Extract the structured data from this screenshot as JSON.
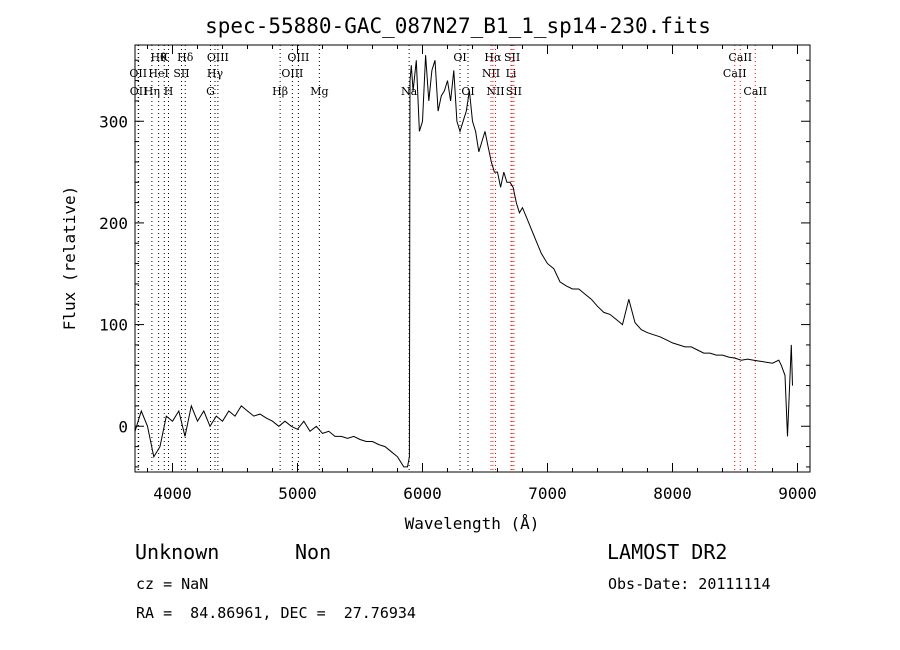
{
  "chart_data": {
    "type": "line",
    "title": "spec-55880-GAC_087N27_B1_1_sp14-230.fits",
    "xlabel": "Wavelength (Å)",
    "ylabel": "Flux (relative)",
    "xlim": [
      3700,
      9100
    ],
    "ylim": [
      -45,
      375
    ],
    "xticks": [
      4000,
      5000,
      6000,
      7000,
      8000,
      9000
    ],
    "yticks": [
      0,
      100,
      200,
      300
    ],
    "grid": false,
    "series": [
      {
        "x": [
          3700,
          3750,
          3800,
          3850,
          3900,
          3950,
          4000,
          4050,
          4100,
          4150,
          4200,
          4250,
          4300,
          4350,
          4400,
          4450,
          4500,
          4550,
          4600,
          4650,
          4700,
          4750,
          4800,
          4850,
          4900,
          4950,
          5000,
          5050,
          5100,
          5150,
          5200,
          5250,
          5300,
          5350,
          5400,
          5450,
          5500,
          5550,
          5600,
          5650,
          5700,
          5750,
          5800,
          5850,
          5880,
          5895,
          5900,
          5910,
          5925,
          5950,
          5975,
          6000,
          6025,
          6050,
          6075,
          6100,
          6125,
          6150,
          6175,
          6200,
          6225,
          6250,
          6275,
          6300,
          6325,
          6350,
          6375,
          6400,
          6425,
          6450,
          6475,
          6500,
          6525,
          6550,
          6575,
          6600,
          6625,
          6650,
          6675,
          6700,
          6725,
          6750,
          6775,
          6800,
          6850,
          6900,
          6950,
          7000,
          7050,
          7100,
          7150,
          7200,
          7250,
          7300,
          7350,
          7400,
          7450,
          7500,
          7550,
          7600,
          7650,
          7700,
          7750,
          7800,
          7850,
          7900,
          7950,
          8000,
          8050,
          8100,
          8150,
          8200,
          8250,
          8300,
          8350,
          8400,
          8450,
          8500,
          8550,
          8600,
          8650,
          8700,
          8750,
          8800,
          8850,
          8870,
          8900,
          8920,
          8950,
          8960
        ],
        "y": [
          -5,
          15,
          0,
          -30,
          -20,
          10,
          5,
          15,
          -10,
          20,
          5,
          15,
          0,
          10,
          5,
          15,
          10,
          20,
          15,
          10,
          12,
          8,
          5,
          0,
          5,
          0,
          -3,
          5,
          -5,
          0,
          -7,
          -5,
          -10,
          -10,
          -12,
          -10,
          -13,
          -15,
          -15,
          -18,
          -20,
          -25,
          -30,
          -40,
          -40,
          -30,
          340,
          355,
          330,
          360,
          290,
          300,
          365,
          320,
          350,
          360,
          310,
          325,
          330,
          340,
          320,
          350,
          300,
          290,
          300,
          310,
          330,
          300,
          290,
          270,
          280,
          290,
          275,
          260,
          250,
          250,
          235,
          250,
          240,
          240,
          235,
          220,
          210,
          215,
          200,
          185,
          170,
          160,
          155,
          142,
          138,
          135,
          135,
          130,
          125,
          118,
          112,
          110,
          105,
          100,
          125,
          102,
          95,
          92,
          90,
          88,
          85,
          82,
          80,
          78,
          78,
          75,
          72,
          72,
          70,
          70,
          68,
          67,
          65,
          66,
          65,
          64,
          63,
          62,
          65,
          60,
          50,
          -10,
          80,
          40
        ]
      }
    ],
    "annotations": {
      "row1": [
        {
          "x": 3889,
          "label": "Hθ"
        },
        {
          "x": 3934,
          "label": "K"
        },
        {
          "x": 4102,
          "label": "Hδ"
        },
        {
          "x": 4363,
          "label": "OIII"
        },
        {
          "x": 5007,
          "label": "OIII"
        },
        {
          "x": 6300,
          "label": "OI"
        },
        {
          "x": 6563,
          "label": "Hα"
        },
        {
          "x": 6717,
          "label": "SII"
        },
        {
          "x": 8542,
          "label": "CaII"
        }
      ],
      "row2": [
        {
          "x": 3726,
          "label": "OII"
        },
        {
          "x": 3889,
          "label": "HeI"
        },
        {
          "x": 4072,
          "label": "SII"
        },
        {
          "x": 4340,
          "label": "Hγ"
        },
        {
          "x": 4959,
          "label": "OIII"
        },
        {
          "x": 6548,
          "label": "NII"
        },
        {
          "x": 6708,
          "label": "Li"
        },
        {
          "x": 8498,
          "label": "CaII"
        }
      ],
      "row3": [
        {
          "x": 3729,
          "label": "OII"
        },
        {
          "x": 3835,
          "label": "Hη"
        },
        {
          "x": 3968,
          "label": "H"
        },
        {
          "x": 4304,
          "label": "G"
        },
        {
          "x": 4861,
          "label": "Hβ"
        },
        {
          "x": 5175,
          "label": "Mg"
        },
        {
          "x": 5893,
          "label": "Na"
        },
        {
          "x": 6364,
          "label": "OI"
        },
        {
          "x": 6584,
          "label": "NII"
        },
        {
          "x": 6731,
          "label": "SII"
        },
        {
          "x": 8662,
          "label": "CaII"
        }
      ]
    },
    "lines_black": [
      3726,
      3729,
      3835,
      3889,
      3934,
      3968,
      4072,
      4102,
      4304,
      4340,
      4363,
      4861,
      4959,
      5007,
      5175,
      5893,
      6300,
      6364
    ],
    "lines_red": [
      6548,
      6563,
      6584,
      6708,
      6717,
      6731,
      8498,
      8542,
      8662
    ]
  },
  "info": {
    "class": "Unknown",
    "subclass": "Non",
    "survey": "LAMOST DR2",
    "redshift": "cz = NaN",
    "obs_date": "Obs-Date: 20111114",
    "coords": "RA =  84.86961, DEC =  27.76934"
  },
  "colors": {
    "spectrum": "#000000",
    "line_marker_black": "#000000",
    "line_marker_red": "#ff0000"
  }
}
